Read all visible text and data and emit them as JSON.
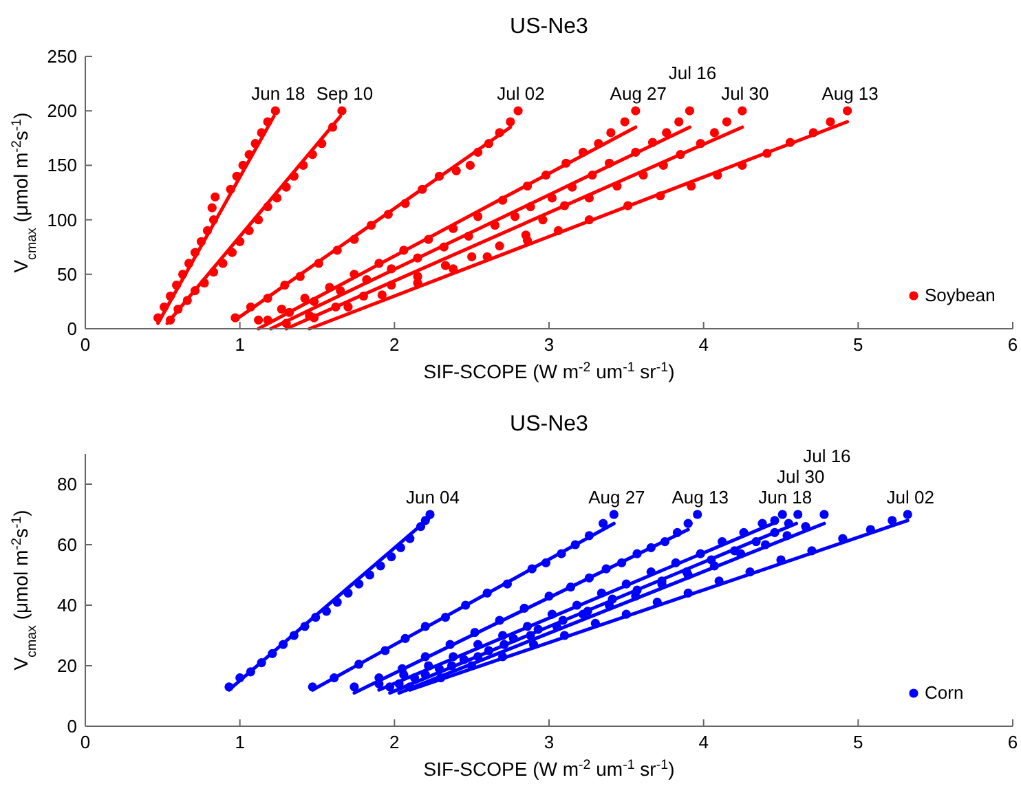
{
  "chart_data": [
    {
      "type": "scatter",
      "title": "US-Ne3",
      "xlabel": "SIF-SCOPE (W m$^{-2}$ um$^{-1}$ sr$^{-1}$)",
      "ylabel": "V$_{cmax}$ (μmol m$^{-2}$s$^{-1}$)",
      "xlim": [
        0,
        6
      ],
      "xticks": [
        0,
        1,
        2,
        3,
        4,
        5,
        6
      ],
      "ylim": [
        0,
        250
      ],
      "yticks": [
        0,
        50,
        100,
        150,
        200,
        250
      ],
      "grid": false,
      "legend": "bottom right",
      "marker": "circle",
      "series": [
        {
          "name": "Soybean",
          "color": "#ff0000",
          "x": [
            0.47,
            0.51,
            0.55,
            0.59,
            0.63,
            0.67,
            0.71,
            0.75,
            0.79,
            0.83,
            0.82,
            0.84,
            0.94,
            0.98,
            1.02,
            1.06,
            1.1,
            1.14,
            1.18,
            1.23,
            0.55,
            0.6,
            0.66,
            0.71,
            0.77,
            0.83,
            0.89,
            0.95,
            1.0,
            1.06,
            1.12,
            1.18,
            1.24,
            1.3,
            1.35,
            1.41,
            1.47,
            1.53,
            1.6,
            1.66,
            0.97,
            1.07,
            1.18,
            1.29,
            1.39,
            1.51,
            1.63,
            1.74,
            1.85,
            1.96,
            2.07,
            2.18,
            2.29,
            2.4,
            2.49,
            2.54,
            2.61,
            2.68,
            2.75,
            2.8,
            1.12,
            1.27,
            1.42,
            1.58,
            1.74,
            1.9,
            2.06,
            2.22,
            2.38,
            2.54,
            2.7,
            2.86,
            2.98,
            3.11,
            3.22,
            3.32,
            3.4,
            3.49,
            3.56,
            1.18,
            1.32,
            1.48,
            1.65,
            1.82,
            1.98,
            2.15,
            2.32,
            2.48,
            2.65,
            2.78,
            2.88,
            3.02,
            3.15,
            3.28,
            3.39,
            3.56,
            3.67,
            3.76,
            3.84,
            3.91,
            1.3,
            1.45,
            1.62,
            1.8,
            1.98,
            2.15,
            2.33,
            2.5,
            2.68,
            2.85,
            2.96,
            3.1,
            3.26,
            3.44,
            3.61,
            3.74,
            3.85,
            3.98,
            4.07,
            4.15,
            4.25,
            1.48,
            1.7,
            1.92,
            2.15,
            2.38,
            2.6,
            2.86,
            3.06,
            3.26,
            3.51,
            3.72,
            3.92,
            4.09,
            4.25,
            4.41,
            4.56,
            4.71,
            4.82,
            4.93
          ],
          "values": [
            10,
            20,
            30,
            40,
            50,
            60,
            70,
            80,
            90,
            100,
            111,
            121,
            128,
            140,
            150,
            160,
            170,
            180,
            190,
            200,
            8,
            18,
            26,
            35,
            42,
            52,
            60,
            70,
            80,
            90,
            100,
            112,
            120,
            130,
            140,
            150,
            160,
            170,
            185,
            200,
            10,
            20,
            28,
            40,
            48,
            60,
            72,
            82,
            95,
            105,
            115,
            128,
            140,
            145,
            150,
            162,
            170,
            180,
            190,
            200,
            8,
            18,
            28,
            38,
            50,
            60,
            72,
            82,
            92,
            103,
            118,
            131,
            141,
            152,
            162,
            170,
            180,
            190,
            200,
            8,
            15,
            25,
            35,
            45,
            55,
            65,
            75,
            85,
            95,
            103,
            112,
            120,
            130,
            141,
            152,
            162,
            171,
            180,
            190,
            200,
            5,
            12,
            20,
            30,
            40,
            48,
            58,
            66,
            76,
            86,
            100,
            113,
            120,
            131,
            141,
            150,
            160,
            170,
            180,
            190,
            200,
            10,
            20,
            31,
            42,
            55,
            66,
            81,
            90,
            100,
            113,
            122,
            131,
            141,
            150,
            161,
            171,
            180,
            190,
            200
          ]
        },
        {
          "type": "line",
          "marker": "none",
          "color": "#ff0000",
          "x": [
            0.47,
            1.22
          ],
          "values": [
            5,
            195
          ]
        },
        {
          "type": "line",
          "marker": "none",
          "color": "#ff0000",
          "x": [
            0.53,
            1.65
          ],
          "values": [
            5,
            195
          ]
        },
        {
          "type": "line",
          "marker": "none",
          "color": "#ff0000",
          "x": [
            0.97,
            2.75
          ],
          "values": [
            8,
            185
          ]
        },
        {
          "type": "line",
          "marker": "none",
          "color": "#ff0000",
          "x": [
            1.12,
            3.56
          ],
          "values": [
            0,
            185
          ]
        },
        {
          "type": "line",
          "marker": "none",
          "color": "#ff0000",
          "x": [
            1.2,
            3.91
          ],
          "values": [
            0,
            185
          ]
        },
        {
          "type": "line",
          "marker": "none",
          "color": "#ff0000",
          "x": [
            1.3,
            4.25
          ],
          "values": [
            0,
            185
          ]
        },
        {
          "type": "line",
          "marker": "none",
          "color": "#ff0000",
          "x": [
            1.45,
            4.93
          ],
          "values": [
            0,
            190
          ]
        }
      ],
      "annotations": [
        {
          "text": "Jun 18",
          "x": 1.23,
          "y": 200
        },
        {
          "text": "Sep 10",
          "x": 1.66,
          "y": 200
        },
        {
          "text": "Jul 02",
          "x": 2.8,
          "y": 200
        },
        {
          "text": "Aug 27",
          "x": 3.56,
          "y": 200
        },
        {
          "text": "Jul 16",
          "x": 3.91,
          "y": 200
        },
        {
          "text": "Jul 30",
          "x": 4.25,
          "y": 200
        },
        {
          "text": "Aug 13",
          "x": 4.93,
          "y": 200
        }
      ]
    },
    {
      "type": "scatter",
      "title": "US-Ne3",
      "xlabel": "SIF-SCOPE (W m$^{-2}$ um$^{-1}$ sr$^{-1}$)",
      "ylabel": "V$_{cmax}$ (μmol m$^{-2}$s$^{-1}$)",
      "xlim": [
        0,
        6
      ],
      "xticks": [
        0,
        1,
        2,
        3,
        4,
        5,
        6
      ],
      "ylim": [
        0,
        90
      ],
      "yticks": [
        0,
        20,
        40,
        60,
        80
      ],
      "grid": false,
      "legend": "bottom right",
      "marker": "circle",
      "series": [
        {
          "name": "Corn",
          "color": "#0000ff",
          "x": [
            0.93,
            1.0,
            1.07,
            1.14,
            1.21,
            1.28,
            1.35,
            1.42,
            1.49,
            1.56,
            1.63,
            1.7,
            1.77,
            1.84,
            1.91,
            1.98,
            2.04,
            2.1,
            2.17,
            2.2,
            2.23,
            1.47,
            1.61,
            1.77,
            1.94,
            2.07,
            2.2,
            2.33,
            2.46,
            2.6,
            2.73,
            2.89,
            2.98,
            3.08,
            3.17,
            3.26,
            3.35,
            3.42,
            1.74,
            1.9,
            2.05,
            2.2,
            2.36,
            2.52,
            2.68,
            2.84,
            3.0,
            3.14,
            3.26,
            3.37,
            3.47,
            3.57,
            3.66,
            3.75,
            3.83,
            3.9,
            3.96,
            1.9,
            2.06,
            2.22,
            2.38,
            2.54,
            2.7,
            2.86,
            3.02,
            3.18,
            3.34,
            3.5,
            3.66,
            3.82,
            3.98,
            4.12,
            4.26,
            4.38,
            4.46,
            4.51,
            1.97,
            2.13,
            2.29,
            2.45,
            2.61,
            2.77,
            2.93,
            3.09,
            3.25,
            3.41,
            3.57,
            3.73,
            3.89,
            4.05,
            4.2,
            4.34,
            4.46,
            4.55,
            4.61,
            2.03,
            2.2,
            2.37,
            2.54,
            2.71,
            2.88,
            3.05,
            3.22,
            3.39,
            3.56,
            3.73,
            3.9,
            4.07,
            4.24,
            4.4,
            4.54,
            4.66,
            4.78,
            2.1,
            2.3,
            2.5,
            2.7,
            2.9,
            3.1,
            3.3,
            3.5,
            3.7,
            3.9,
            4.1,
            4.3,
            4.5,
            4.7,
            4.9,
            5.08,
            5.22,
            5.32
          ],
          "values": [
            13,
            16,
            18,
            21,
            24,
            27,
            30,
            33,
            36,
            38,
            41,
            44,
            47,
            50,
            53,
            56,
            59,
            62,
            66,
            68,
            70,
            13,
            16,
            20.5,
            25,
            29,
            33,
            36,
            40,
            44,
            47,
            52,
            54,
            57,
            60,
            63,
            67,
            70,
            13,
            16,
            19,
            23,
            27,
            31,
            35,
            39,
            43,
            46,
            49,
            52,
            54,
            57,
            59,
            61,
            64,
            67,
            70,
            14,
            17,
            20,
            23,
            27,
            30,
            33,
            37,
            40,
            44,
            47,
            51,
            54,
            57,
            61,
            64,
            67,
            68,
            70,
            13,
            16,
            19,
            22,
            25,
            29,
            32,
            35,
            38,
            42,
            45,
            48,
            51,
            55,
            58,
            61,
            64,
            67,
            70,
            14,
            17,
            20,
            23,
            27,
            30,
            33,
            37,
            40,
            43,
            47,
            50,
            53,
            57,
            60,
            63,
            66,
            70,
            13,
            16,
            20,
            23,
            27,
            30,
            34,
            37,
            41,
            44,
            48,
            51,
            55,
            58,
            62,
            65,
            68,
            70
          ]
        },
        {
          "type": "line",
          "marker": "none",
          "color": "#0000ff",
          "x": [
            0.93,
            2.23
          ],
          "values": [
            12,
            69
          ]
        },
        {
          "type": "line",
          "marker": "none",
          "color": "#0000ff",
          "x": [
            1.47,
            3.42
          ],
          "values": [
            12,
            67
          ]
        },
        {
          "type": "line",
          "marker": "none",
          "color": "#0000ff",
          "x": [
            1.74,
            3.9
          ],
          "values": [
            11,
            65
          ]
        },
        {
          "type": "line",
          "marker": "none",
          "color": "#0000ff",
          "x": [
            1.9,
            4.45
          ],
          "values": [
            12,
            67
          ]
        },
        {
          "type": "line",
          "marker": "none",
          "color": "#0000ff",
          "x": [
            1.97,
            4.6
          ],
          "values": [
            11,
            67
          ]
        },
        {
          "type": "line",
          "marker": "none",
          "color": "#0000ff",
          "x": [
            2.03,
            4.78
          ],
          "values": [
            11,
            67
          ]
        },
        {
          "type": "line",
          "marker": "none",
          "color": "#0000ff",
          "x": [
            2.1,
            5.32
          ],
          "values": [
            12,
            68
          ]
        }
      ],
      "annotations": [
        {
          "text": "Jun 04",
          "x": 2.23,
          "y": 70
        },
        {
          "text": "Aug 27",
          "x": 3.42,
          "y": 70
        },
        {
          "text": "Aug 13",
          "x": 3.96,
          "y": 70
        },
        {
          "text": "Jun 18",
          "x": 4.51,
          "y": 70
        },
        {
          "text": "Jul 30",
          "x": 4.61,
          "y": 70
        },
        {
          "text": "Jul 16",
          "x": 4.78,
          "y": 70
        },
        {
          "text": "Jul 02",
          "x": 5.32,
          "y": 70
        }
      ]
    }
  ]
}
